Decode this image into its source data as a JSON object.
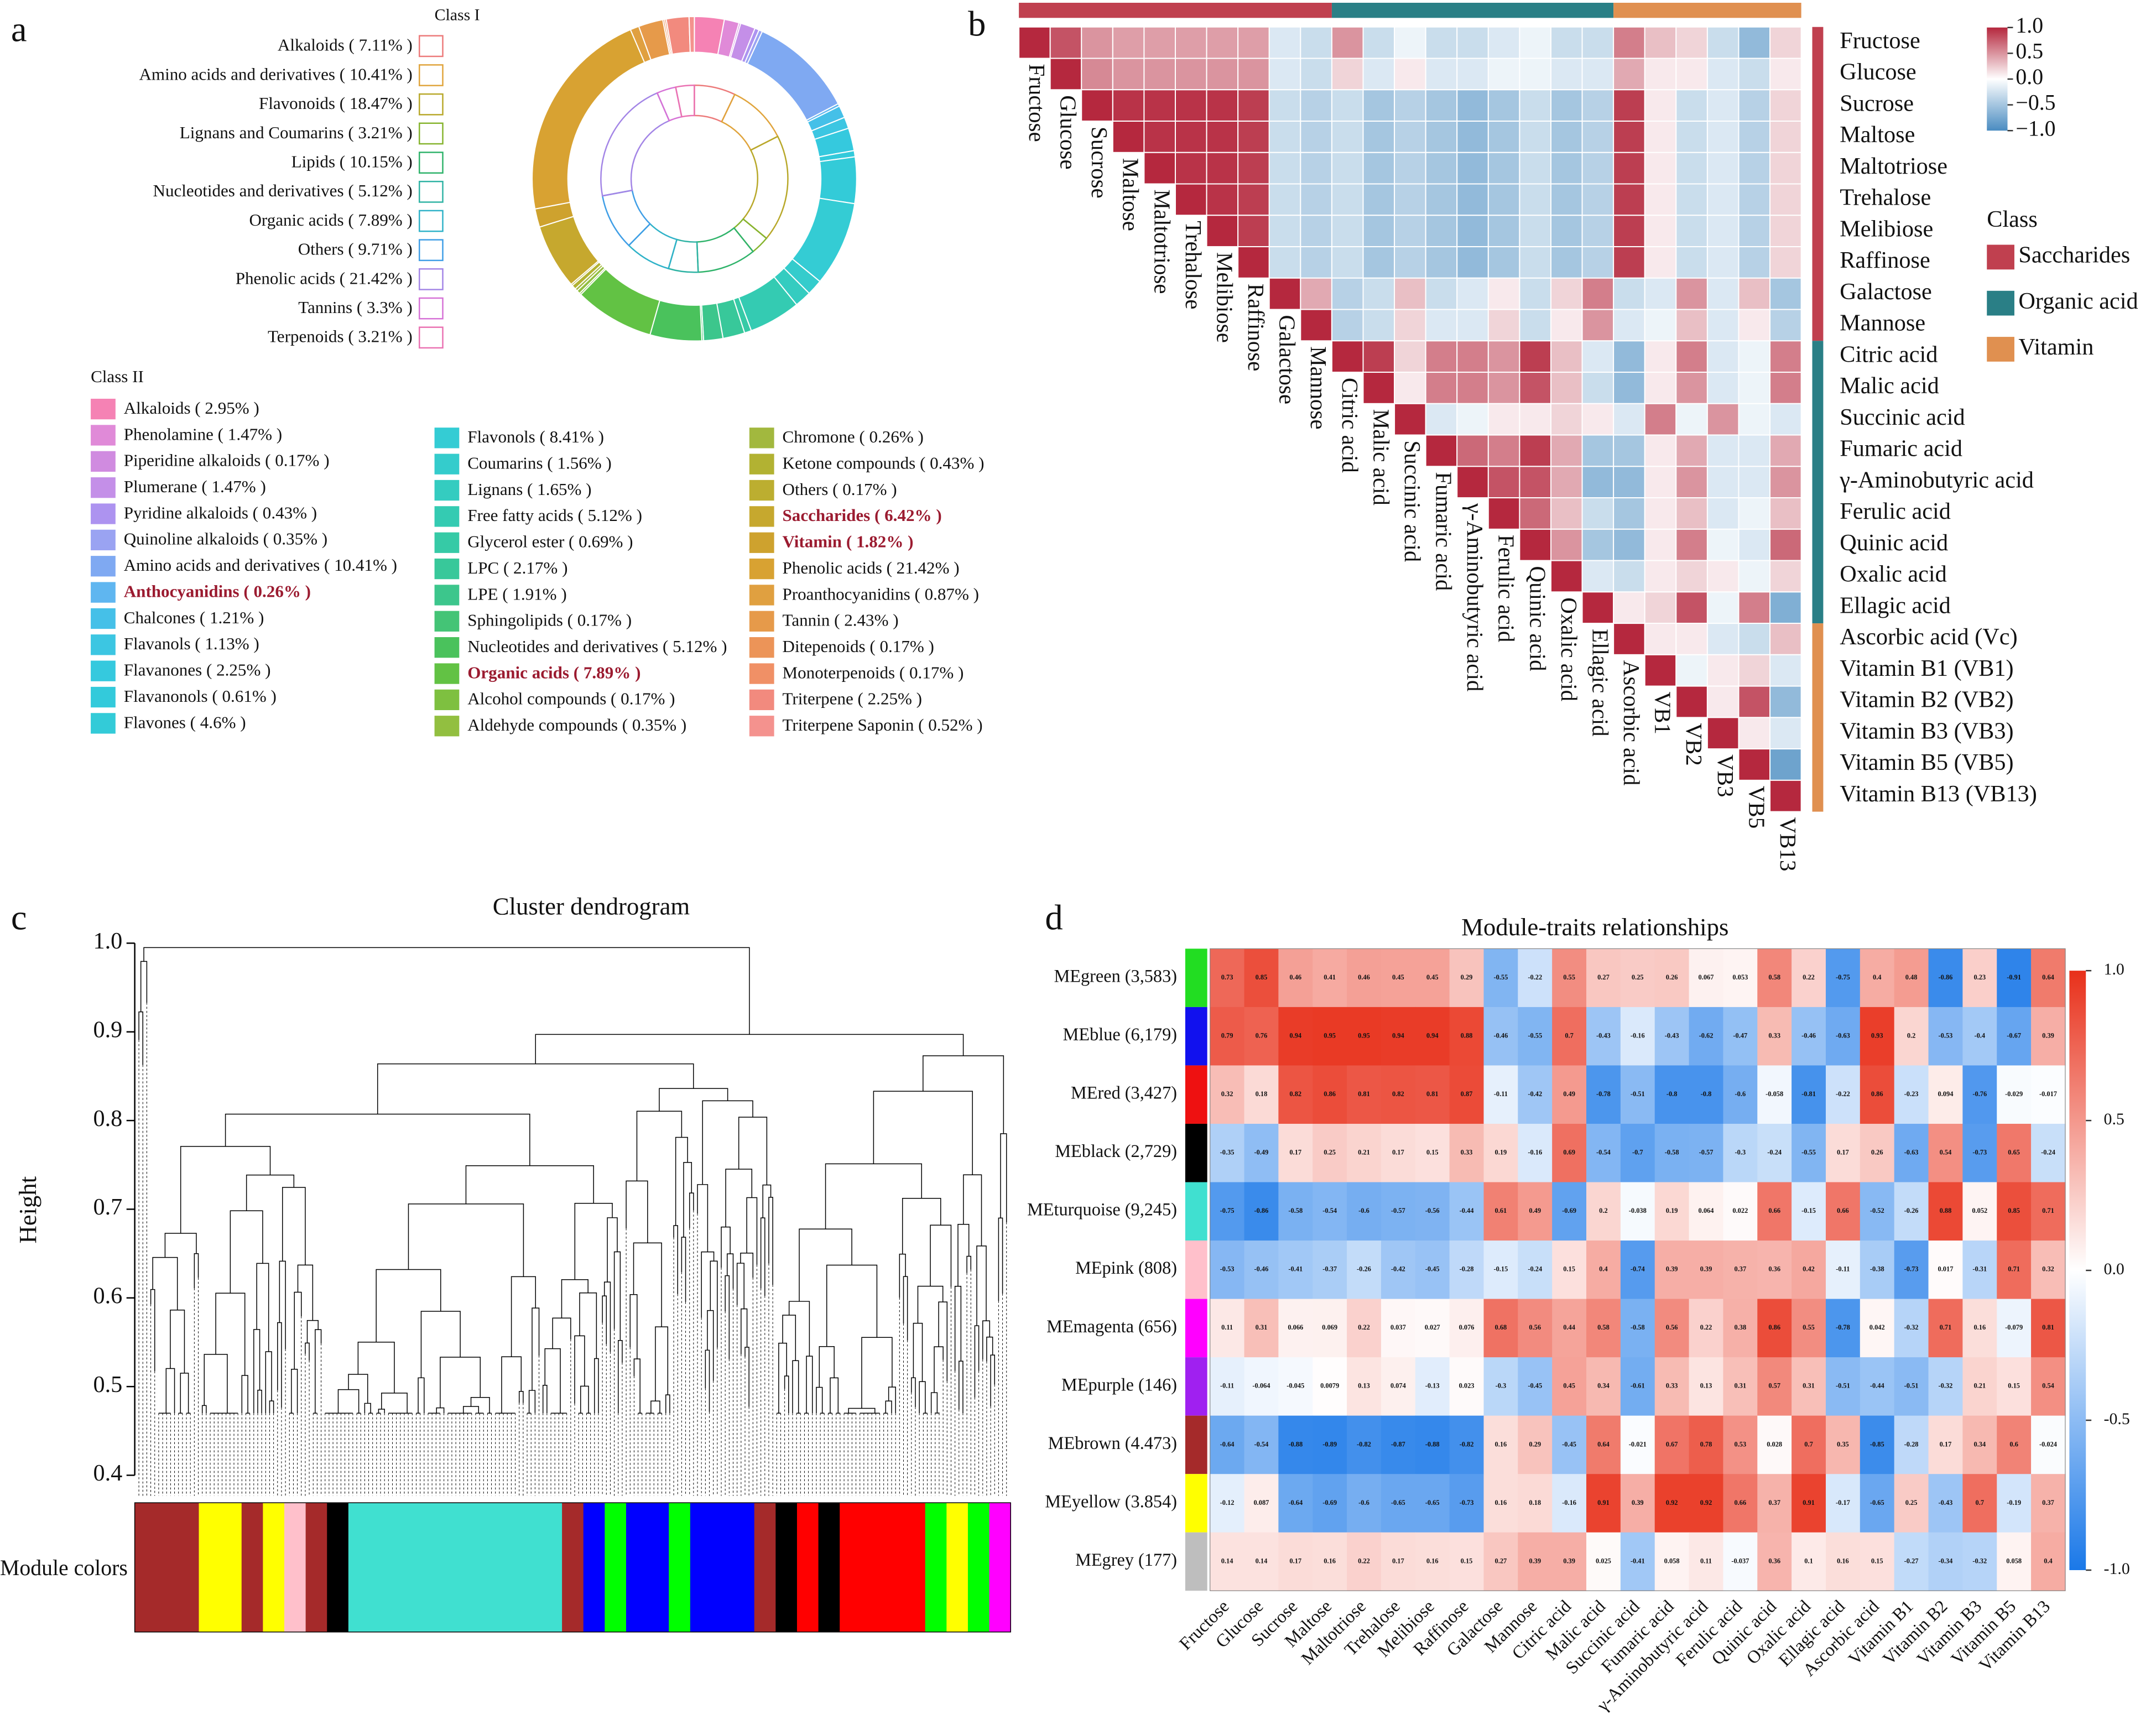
{
  "panel_labels": [
    "a",
    "b",
    "c",
    "d"
  ],
  "chart_data": [
    {
      "type": "donut",
      "class1_title": "Class I",
      "class1": {
        "labels": [
          "Alkaloids ( 7.11% )",
          "Amino acids and derivatives ( 10.41% )",
          "Flavonoids ( 18.47% )",
          "Lignans and Coumarins ( 3.21% )",
          "Lipids ( 10.15% )",
          "Nucleotides and derivatives ( 5.12% )",
          "Organic acids ( 7.89% )",
          "Others ( 9.71% )",
          "Phenolic acids ( 21.42% )",
          "Tannins ( 3.3% )",
          "Terpenoids ( 3.21% )"
        ],
        "values": [
          7.11,
          10.41,
          18.47,
          3.21,
          10.15,
          5.12,
          7.89,
          9.71,
          21.42,
          3.3,
          3.21
        ],
        "colors": [
          "#ec7a7a",
          "#e0a43c",
          "#b8a82a",
          "#86b42e",
          "#2fb36a",
          "#2fb3a4",
          "#2fb2c8",
          "#3f9ee6",
          "#a385e6",
          "#d672d6",
          "#ea72b2"
        ]
      },
      "class2_title": "Class II",
      "class2": {
        "labels": [
          "Alkaloids ( 2.95% )",
          "Phenolamine ( 1.47% )",
          "Piperidine alkaloids ( 0.17% )",
          "Plumerane ( 1.47% )",
          "Pyridine alkaloids ( 0.43% )",
          "Quinoline alkaloids ( 0.35% )",
          "Amino acids and derivatives ( 10.41% )",
          "Anthocyanidins ( 0.26% )",
          "Chalcones ( 1.21% )",
          "Flavanols ( 1.13% )",
          "Flavanones ( 2.25% )",
          "Flavanonols ( 0.61% )",
          "Flavones ( 4.6% )",
          "Flavonols ( 8.41% )",
          "Coumarins ( 1.56% )",
          "Lignans ( 1.65% )",
          "Free fatty acids ( 5.12% )",
          "Glycerol ester ( 0.69% )",
          "LPC ( 2.17% )",
          "LPE ( 1.91% )",
          "Sphingolipids ( 0.17% )",
          "Nucleotides and derivatives ( 5.12% )",
          "Organic acids ( 7.89% )",
          "Alcohol compounds ( 0.17% )",
          "Aldehyde compounds ( 0.35% )",
          "Chromone ( 0.26% )",
          "Ketone compounds ( 0.43% )",
          "Others ( 0.17% )",
          "Saccharides ( 6.42% )",
          "Vitamin ( 1.82% )",
          "Phenolic acids ( 21.42% )",
          "Proanthocyanidins ( 0.87% )",
          "Tannin ( 2.43% )",
          "Ditepenoids ( 0.17% )",
          "Monoterpenoids ( 0.17% )",
          "Triterpene ( 2.25% )",
          "Triterpene Saponin ( 0.52% )"
        ],
        "values": [
          2.95,
          1.47,
          0.17,
          1.47,
          0.43,
          0.35,
          10.41,
          0.26,
          1.21,
          1.13,
          2.25,
          0.61,
          4.6,
          8.41,
          1.56,
          1.65,
          5.12,
          0.69,
          2.17,
          1.91,
          0.17,
          5.12,
          7.89,
          0.17,
          0.35,
          0.26,
          0.43,
          0.17,
          6.42,
          1.82,
          21.42,
          0.87,
          2.43,
          0.17,
          0.17,
          2.25,
          0.52
        ],
        "colors": [
          "#f582b4",
          "#e08ad8",
          "#d08be0",
          "#c48fe8",
          "#ad93f0",
          "#9aa3f2",
          "#7fa9f2",
          "#5fb6f0",
          "#45c0e8",
          "#3cc6e2",
          "#35c9de",
          "#33cadb",
          "#33cbd8",
          "#34ccd4",
          "#34cccc",
          "#34ccc0",
          "#34cbb2",
          "#36caa6",
          "#38c89a",
          "#3cc68c",
          "#44c476",
          "#4ac25c",
          "#62c244",
          "#7ec040",
          "#92bf40",
          "#a2b83e",
          "#b2b232",
          "#bcae30",
          "#c6a82e",
          "#cea22e",
          "#d8a232",
          "#e0a040",
          "#e69a4a",
          "#ec9458",
          "#f09066",
          "#f28a7e",
          "#f4928e"
        ],
        "highlighted": [
          7,
          22,
          28,
          29
        ]
      }
    },
    {
      "type": "heatmap",
      "row_labels": [
        "Fructose",
        "Glucose",
        "Sucrose",
        "Maltose",
        "Maltotriose",
        "Trehalose",
        "Melibiose",
        "Raffinose",
        "Galactose",
        "Mannose",
        "Citric acid",
        "Malic acid",
        "Succinic acid",
        "Fumaric acid",
        "γ-Aminobutyric acid",
        "Ferulic acid",
        "Quinic acid",
        "Oxalic acid",
        "Ellagic acid",
        "Ascorbic acid (Vc)",
        "Vitamin B1 (VB1)",
        "Vitamin B2 (VB2)",
        "Vitamin B3 (VB3)",
        "Vitamin B5 (VB5)",
        "Vitamin B13 (VB13)"
      ],
      "diag_labels": [
        "Fructose",
        "Glucose",
        "Sucrose",
        "Maltose",
        "Maltotriose",
        "Trehalose",
        "Melibiose",
        "Raffinose",
        "Galactose",
        "Mannose",
        "Citric acid",
        "Malic acid",
        "Succinic acid",
        "Fumaric acid",
        "γ-Aminobutyric acid",
        "Ferulic acid",
        "Quinic acid",
        "Oxalic acid",
        "Ellagic acid",
        "Ascorbic acid",
        "VB1",
        "VB2",
        "VB3",
        "VB5",
        "VB13"
      ],
      "matrix": [
        [
          1,
          0.8,
          0.5,
          0.45,
          0.45,
          0.45,
          0.45,
          0.45,
          -0.2,
          -0.3,
          0.5,
          -0.3,
          -0.1,
          -0.3,
          -0.3,
          -0.2,
          -0.1,
          -0.3,
          -0.3,
          0.6,
          0.3,
          0.2,
          -0.3,
          -0.6,
          0.2
        ],
        [
          1,
          0.55,
          0.5,
          0.5,
          0.5,
          0.5,
          0.5,
          -0.2,
          -0.3,
          0.2,
          -0.2,
          0.1,
          -0.2,
          -0.2,
          -0.1,
          -0.1,
          -0.2,
          -0.2,
          0.4,
          0.1,
          0.1,
          -0.2,
          -0.3,
          0.1
        ],
        [
          1,
          0.95,
          0.95,
          0.95,
          0.95,
          0.9,
          -0.3,
          -0.4,
          -0.3,
          -0.5,
          -0.4,
          -0.5,
          -0.6,
          -0.5,
          -0.3,
          -0.5,
          -0.4,
          0.9,
          0.1,
          -0.3,
          -0.2,
          -0.4,
          0.2
        ],
        [
          1,
          0.95,
          0.95,
          0.95,
          0.9,
          -0.3,
          -0.4,
          -0.3,
          -0.5,
          -0.4,
          -0.5,
          -0.6,
          -0.5,
          -0.3,
          -0.5,
          -0.4,
          0.9,
          0.1,
          -0.3,
          -0.2,
          -0.4,
          0.2
        ],
        [
          1,
          0.95,
          0.95,
          0.9,
          -0.3,
          -0.4,
          -0.3,
          -0.5,
          -0.4,
          -0.5,
          -0.6,
          -0.5,
          -0.3,
          -0.5,
          -0.4,
          0.9,
          0.1,
          -0.3,
          -0.2,
          -0.4,
          0.2
        ],
        [
          1,
          0.95,
          0.9,
          -0.3,
          -0.4,
          -0.3,
          -0.5,
          -0.4,
          -0.5,
          -0.6,
          -0.5,
          -0.3,
          -0.5,
          -0.4,
          0.9,
          0.1,
          -0.3,
          -0.2,
          -0.4,
          0.2
        ],
        [
          1,
          0.9,
          -0.3,
          -0.4,
          -0.3,
          -0.5,
          -0.4,
          -0.5,
          -0.6,
          -0.5,
          -0.3,
          -0.5,
          -0.4,
          0.9,
          0.1,
          -0.3,
          -0.2,
          -0.4,
          0.2
        ],
        [
          1,
          -0.3,
          -0.4,
          -0.3,
          -0.5,
          -0.4,
          -0.5,
          -0.6,
          -0.5,
          -0.3,
          -0.5,
          -0.4,
          0.9,
          0.1,
          -0.3,
          -0.2,
          -0.4,
          0.2
        ],
        [
          1,
          0.4,
          -0.4,
          -0.3,
          0.3,
          -0.3,
          -0.2,
          0.1,
          -0.3,
          0.2,
          0.6,
          -0.3,
          -0.2,
          0.5,
          -0.2,
          0.3,
          -0.5
        ],
        [
          1,
          -0.4,
          -0.3,
          0.2,
          -0.2,
          -0.2,
          0.2,
          -0.3,
          0.1,
          0.5,
          -0.2,
          -0.1,
          0.3,
          -0.2,
          0.1,
          -0.4
        ],
        [
          1,
          0.9,
          0.2,
          0.6,
          0.6,
          0.5,
          0.9,
          0.3,
          -0.2,
          -0.6,
          0.1,
          0.6,
          -0.2,
          -0.1,
          0.6
        ],
        [
          1,
          0.1,
          0.6,
          0.6,
          0.5,
          0.8,
          0.3,
          -0.3,
          -0.6,
          0.1,
          0.5,
          -0.2,
          -0.1,
          0.6
        ],
        [
          1,
          -0.2,
          -0.1,
          0.1,
          0.1,
          0.2,
          0.1,
          -0.2,
          0.6,
          -0.1,
          0.5,
          -0.1,
          -0.2
        ],
        [
          1,
          0.7,
          0.6,
          0.9,
          0.4,
          -0.5,
          -0.5,
          0.1,
          0.4,
          -0.2,
          -0.2,
          0.4
        ],
        [
          1,
          0.8,
          0.8,
          0.4,
          -0.6,
          -0.6,
          0.1,
          0.5,
          -0.2,
          -0.2,
          0.5
        ],
        [
          1,
          0.7,
          0.3,
          -0.3,
          -0.5,
          0.1,
          0.3,
          -0.2,
          -0.1,
          0.3
        ],
        [
          1,
          0.5,
          -0.5,
          -0.6,
          0.1,
          0.6,
          -0.1,
          -0.2,
          0.7
        ],
        [
          1,
          -0.2,
          -0.3,
          0.1,
          0.2,
          0.1,
          -0.1,
          0.2
        ],
        [
          1,
          0.1,
          0.2,
          0.8,
          -0.1,
          0.6,
          -0.7
        ],
        [
          1,
          0.1,
          0.1,
          -0.2,
          -0.3,
          0.3
        ],
        [
          1,
          -0.1,
          0.1,
          0.2,
          -0.2
        ],
        [
          1,
          0.1,
          0.8,
          -0.6
        ],
        [
          1,
          0.1,
          -0.2
        ],
        [
          1,
          -0.8
        ],
        [
          1
        ]
      ],
      "classes": {
        "title": "Class",
        "names": [
          "Saccharides",
          "Organic acid",
          "Vitamin"
        ],
        "colors": [
          "#c0404f",
          "#2a7f86",
          "#e09050"
        ],
        "counts": [
          10,
          9,
          6
        ]
      },
      "colorbar": {
        "ylim": [
          -1,
          1
        ],
        "yticks": [
          {
            "value": 1,
            "label": "1.0"
          },
          0.5,
          {
            "value": 0,
            "label": "0.0"
          },
          {
            "value": -0.5,
            "label": "−0.5"
          },
          {
            "value": -1,
            "label": "−1.0"
          }
        ],
        "colors": [
          "#4a8cc1",
          "#ffffff",
          "#b5283e"
        ]
      }
    },
    {
      "type": "dendrogram",
      "title": "Cluster dendrogram",
      "ylabel": "Height",
      "ylim": [
        0.4,
        1.0
      ],
      "yticks": [
        {
          "value": 1,
          "label": "1.0"
        },
        0.9,
        0.8,
        0.7,
        0.6,
        0.5,
        0.4
      ],
      "color_bar_label": "Module colors",
      "module_colors": [
        "#a52a2a",
        "#a52a2a",
        "#a52a2a",
        "#ffff00",
        "#ffff00",
        "#a52a2a",
        "#ffff00",
        "#ffc0cb",
        "#a52a2a",
        "#000000",
        "#40e0d0",
        "#40e0d0",
        "#40e0d0",
        "#40e0d0",
        "#40e0d0",
        "#40e0d0",
        "#40e0d0",
        "#40e0d0",
        "#40e0d0",
        "#40e0d0",
        "#a52a2a",
        "#0000ff",
        "#00ff00",
        "#0000ff",
        "#0000ff",
        "#00ff00",
        "#0000ff",
        "#0000ff",
        "#0000ff",
        "#a52a2a",
        "#000000",
        "#ff0000",
        "#000000",
        "#ff0000",
        "#ff0000",
        "#ff0000",
        "#ff0000",
        "#00ff00",
        "#ffff00",
        "#00ff00",
        "#ff00ff"
      ]
    },
    {
      "type": "heatmap_table",
      "title": "Module-traits relationships",
      "row_labels": [
        "MEgreen (3,583)",
        "MEblue (6,179)",
        "MEred (3,427)",
        "MEblack (2,729)",
        "MEturquoise (9,245)",
        "MEpink (808)",
        "MEmagenta (656)",
        "MEpurple (146)",
        "MEbrown (4.473)",
        "MEyellow (3.854)",
        "MEgrey (177)"
      ],
      "row_colors": [
        "#22dd22",
        "#1111ee",
        "#ee1111",
        "#000000",
        "#40e0d0",
        "#ffc0cb",
        "#ff00ff",
        "#a020f0",
        "#a52a2a",
        "#ffff00",
        "#bebebe"
      ],
      "columns": [
        "Fructose",
        "Glucose",
        "Sucrose",
        "Maltose",
        "Maltotriose",
        "Trehalose",
        "Melibiose",
        "Raffinose",
        "Galactose",
        "Mannose",
        "Citric acid",
        "Malic acid",
        "Succinic acid",
        "Fumaric acid",
        "γ-Aminobutyric acid",
        "Ferulic acid",
        "Quinic acid",
        "Oxalic acid",
        "Ellagic acid",
        "Ascorbic acid",
        "Vitamin B1",
        "Vitamin B2",
        "Vitamin B3",
        "Vitamin B5",
        "Vitamin B13"
      ],
      "values": [
        [
          0.73,
          0.85,
          0.46,
          0.41,
          0.46,
          0.45,
          0.45,
          0.29,
          -0.55,
          -0.22,
          0.55,
          0.27,
          0.25,
          0.26,
          0.067,
          0.053,
          0.58,
          0.22,
          -0.75,
          0.4,
          0.48,
          -0.86,
          0.23,
          -0.91,
          0.64
        ],
        [
          0.79,
          0.76,
          0.94,
          0.95,
          0.95,
          0.94,
          0.94,
          0.88,
          -0.46,
          -0.55,
          0.7,
          -0.43,
          -0.16,
          -0.43,
          -0.62,
          -0.47,
          0.33,
          -0.46,
          -0.63,
          0.93,
          0.2,
          -0.53,
          -0.4,
          -0.67,
          0.39
        ],
        [
          0.32,
          0.18,
          0.82,
          0.86,
          0.81,
          0.82,
          0.81,
          0.87,
          -0.11,
          -0.42,
          0.49,
          -0.78,
          -0.51,
          -0.8,
          -0.8,
          -0.6,
          -0.058,
          -0.81,
          -0.22,
          0.86,
          -0.23,
          0.094,
          -0.76,
          -0.029,
          -0.017
        ],
        [
          -0.35,
          -0.49,
          0.17,
          0.25,
          0.21,
          0.17,
          0.15,
          0.33,
          0.19,
          -0.16,
          0.69,
          -0.54,
          -0.7,
          -0.58,
          -0.57,
          -0.3,
          -0.24,
          -0.55,
          0.17,
          0.26,
          -0.63,
          0.54,
          -0.73,
          0.65,
          -0.24
        ],
        [
          -0.75,
          -0.86,
          -0.58,
          -0.54,
          -0.6,
          -0.57,
          -0.56,
          -0.44,
          0.61,
          0.49,
          -0.69,
          0.2,
          -0.038,
          0.19,
          0.064,
          0.022,
          0.66,
          -0.15,
          0.66,
          -0.52,
          -0.26,
          0.88,
          0.052,
          0.85,
          0.71
        ],
        [
          -0.53,
          -0.46,
          -0.41,
          -0.37,
          -0.26,
          -0.42,
          -0.45,
          -0.28,
          -0.15,
          -0.24,
          0.15,
          0.4,
          -0.74,
          0.39,
          0.39,
          0.37,
          0.36,
          0.42,
          -0.11,
          -0.38,
          -0.73,
          0.017,
          -0.31,
          0.71,
          0.32
        ],
        [
          0.11,
          0.31,
          0.066,
          0.069,
          0.22,
          0.037,
          0.027,
          0.076,
          0.68,
          0.56,
          0.44,
          0.58,
          -0.58,
          0.56,
          0.22,
          0.38,
          0.86,
          0.55,
          -0.78,
          0.042,
          -0.32,
          0.71,
          0.16,
          -0.079,
          0.81
        ],
        [
          -0.11,
          -0.064,
          -0.045,
          0.0079,
          0.13,
          0.074,
          -0.13,
          0.023,
          -0.3,
          -0.45,
          0.45,
          0.34,
          -0.61,
          0.33,
          0.13,
          0.31,
          0.57,
          0.31,
          -0.51,
          -0.44,
          -0.51,
          -0.32,
          0.21,
          0.15,
          0.54
        ],
        [
          -0.64,
          -0.54,
          -0.88,
          -0.89,
          -0.82,
          -0.87,
          -0.88,
          -0.82,
          0.16,
          0.29,
          -0.45,
          0.64,
          -0.021,
          0.67,
          0.78,
          0.53,
          0.028,
          0.7,
          0.35,
          -0.85,
          -0.28,
          0.17,
          0.34,
          0.6,
          -0.024
        ],
        [
          -0.12,
          0.087,
          -0.64,
          -0.69,
          -0.6,
          -0.65,
          -0.65,
          -0.73,
          0.16,
          0.18,
          -0.16,
          0.91,
          0.39,
          0.92,
          0.92,
          0.66,
          0.37,
          0.91,
          -0.17,
          -0.65,
          0.25,
          -0.43,
          0.7,
          -0.19,
          0.37
        ],
        [
          0.14,
          0.14,
          0.17,
          0.16,
          0.22,
          0.17,
          0.16,
          0.15,
          0.27,
          0.39,
          0.39,
          0.025,
          -0.41,
          0.058,
          0.11,
          -0.037,
          0.36,
          0.1,
          0.16,
          0.15,
          -0.27,
          -0.34,
          -0.32,
          0.058,
          0.4
        ]
      ],
      "colorbar": {
        "ylim": [
          -1,
          1
        ],
        "yticks": [
          {
            "value": 1,
            "label": "1.0"
          },
          0.5,
          {
            "value": 0,
            "label": "0.0"
          },
          -0.5,
          {
            "value": -1,
            "label": "-1.0"
          }
        ],
        "colors": [
          "#1a78e8",
          "#ffffff",
          "#e8301a"
        ]
      }
    }
  ]
}
